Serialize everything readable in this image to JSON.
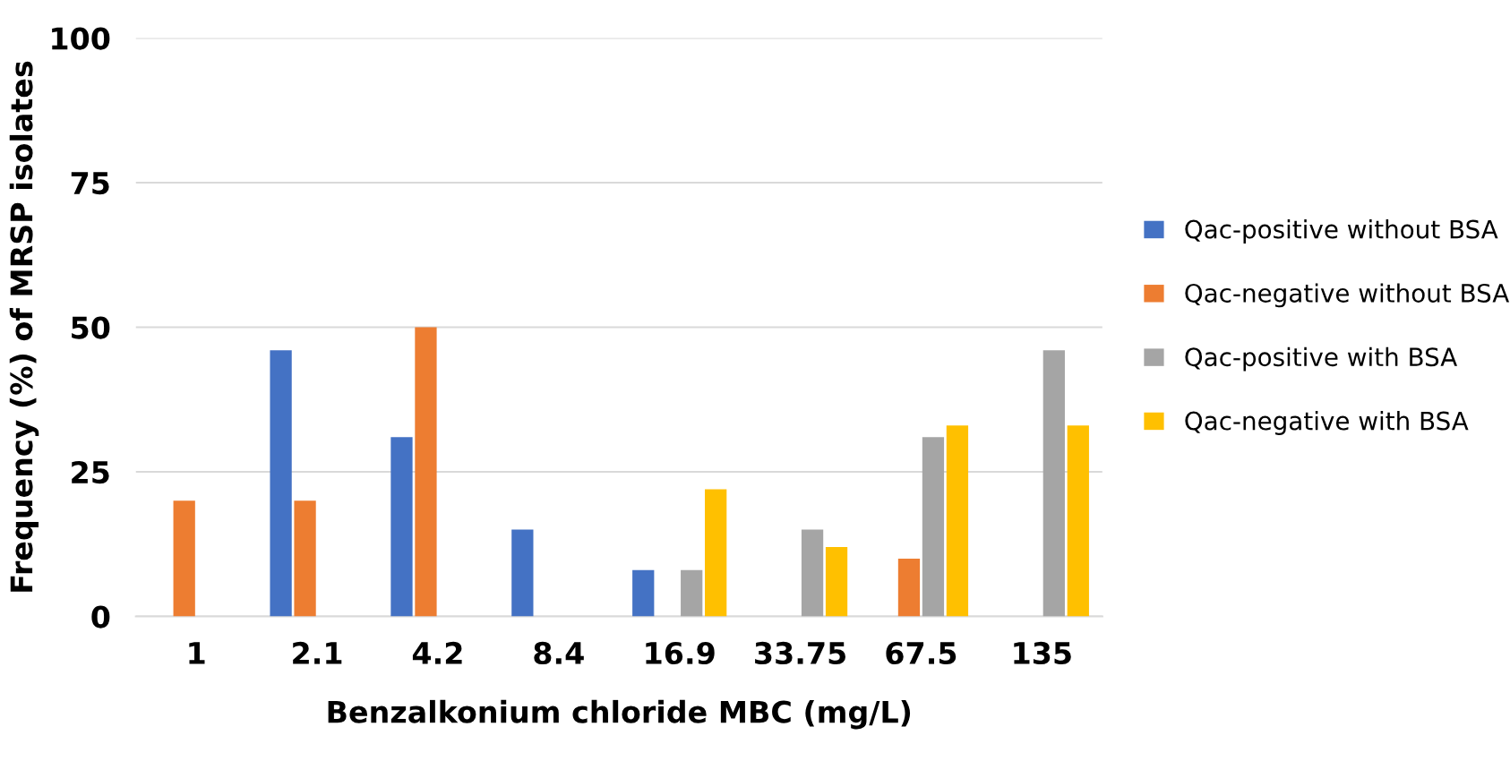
{
  "chart_data": {
    "type": "bar",
    "xlabel": "Benzalkonium chloride MBC (mg/L)",
    "ylabel": "Frequency (%) of MRSP isolates",
    "categories": [
      "1",
      "2.1",
      "4.2",
      "8.4",
      "16.9",
      "33.75",
      "67.5",
      "135"
    ],
    "series": [
      {
        "name": "Qac-positive without BSA",
        "color": "#4472c4",
        "values": [
          0,
          46,
          31,
          15,
          8,
          0,
          0,
          0
        ]
      },
      {
        "name": "Qac-negative without BSA",
        "color": "#ed7d31",
        "values": [
          20,
          20,
          50,
          0,
          0,
          0,
          10,
          0
        ]
      },
      {
        "name": "Qac-positive with BSA",
        "color": "#a5a5a5",
        "values": [
          0,
          0,
          0,
          0,
          8,
          15,
          31,
          46
        ]
      },
      {
        "name": "Qac-negative with BSA",
        "color": "#ffc000",
        "values": [
          0,
          0,
          0,
          0,
          22,
          12,
          33,
          33
        ]
      }
    ],
    "ylim": [
      0,
      100
    ],
    "yticks": [
      0,
      25,
      50,
      75,
      100
    ],
    "grid": "y",
    "legend": "right"
  }
}
